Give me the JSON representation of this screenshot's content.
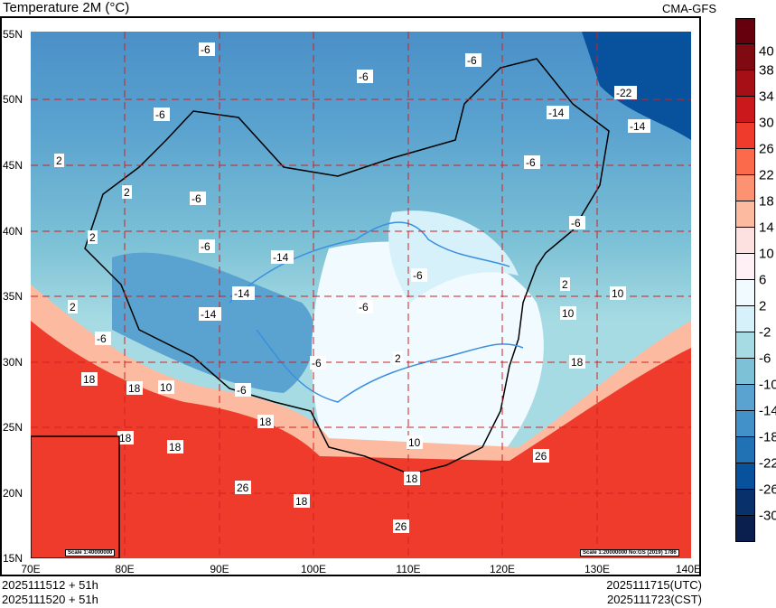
{
  "header": {
    "title": "Temperature  2M (°C)",
    "model": "CMA-GFS"
  },
  "axes": {
    "lat_labels": [
      "55N",
      "50N",
      "45N",
      "40N",
      "35N",
      "30N",
      "25N",
      "20N",
      "15N"
    ],
    "lon_labels": [
      "70E",
      "80E",
      "90E",
      "100E",
      "110E",
      "120E",
      "130E",
      "140E"
    ]
  },
  "footer": {
    "init_utc": "2025111512 + 51h",
    "init_cst": "2025111520 + 51h",
    "valid_utc": "2025111715(UTC)",
    "valid_cst": "2025111723(CST)"
  },
  "scale": {
    "main": "Scale 1:20000000 No:GS (2019) 1786",
    "inset": "Scale 1:40000000"
  },
  "colorbar": {
    "labels": [
      "40",
      "38",
      "34",
      "30",
      "26",
      "22",
      "18",
      "14",
      "10",
      "6",
      "2",
      "-2",
      "-6",
      "-10",
      "-14",
      "-18",
      "-22",
      "-26",
      "-30"
    ],
    "colors": [
      "#67000d",
      "#7f0a12",
      "#a50f15",
      "#cb181d",
      "#ef3b2c",
      "#fb6a4a",
      "#fc9272",
      "#fcbba1",
      "#fde0e0",
      "#fff0f5",
      "#f0faff",
      "#d6f1fa",
      "#a6dbe3",
      "#7cc1d6",
      "#5aa2cf",
      "#4291c9",
      "#2171b5",
      "#08519c",
      "#08306b",
      "#0a1f4e"
    ]
  },
  "contour_labels": [
    "-6",
    "-6",
    "-6",
    "-22",
    "-14",
    "-14",
    "-6",
    "-6",
    "-6",
    "-6",
    "-14",
    "-14",
    "-14",
    "-6",
    "-6",
    "-6",
    "-6",
    "2",
    "2",
    "2",
    "2",
    "2",
    "2",
    "10",
    "10",
    "18",
    "18",
    "18",
    "18",
    "18",
    "18",
    "18",
    "26",
    "26",
    "26",
    "10",
    "-6",
    "-6",
    "18",
    "10"
  ]
}
